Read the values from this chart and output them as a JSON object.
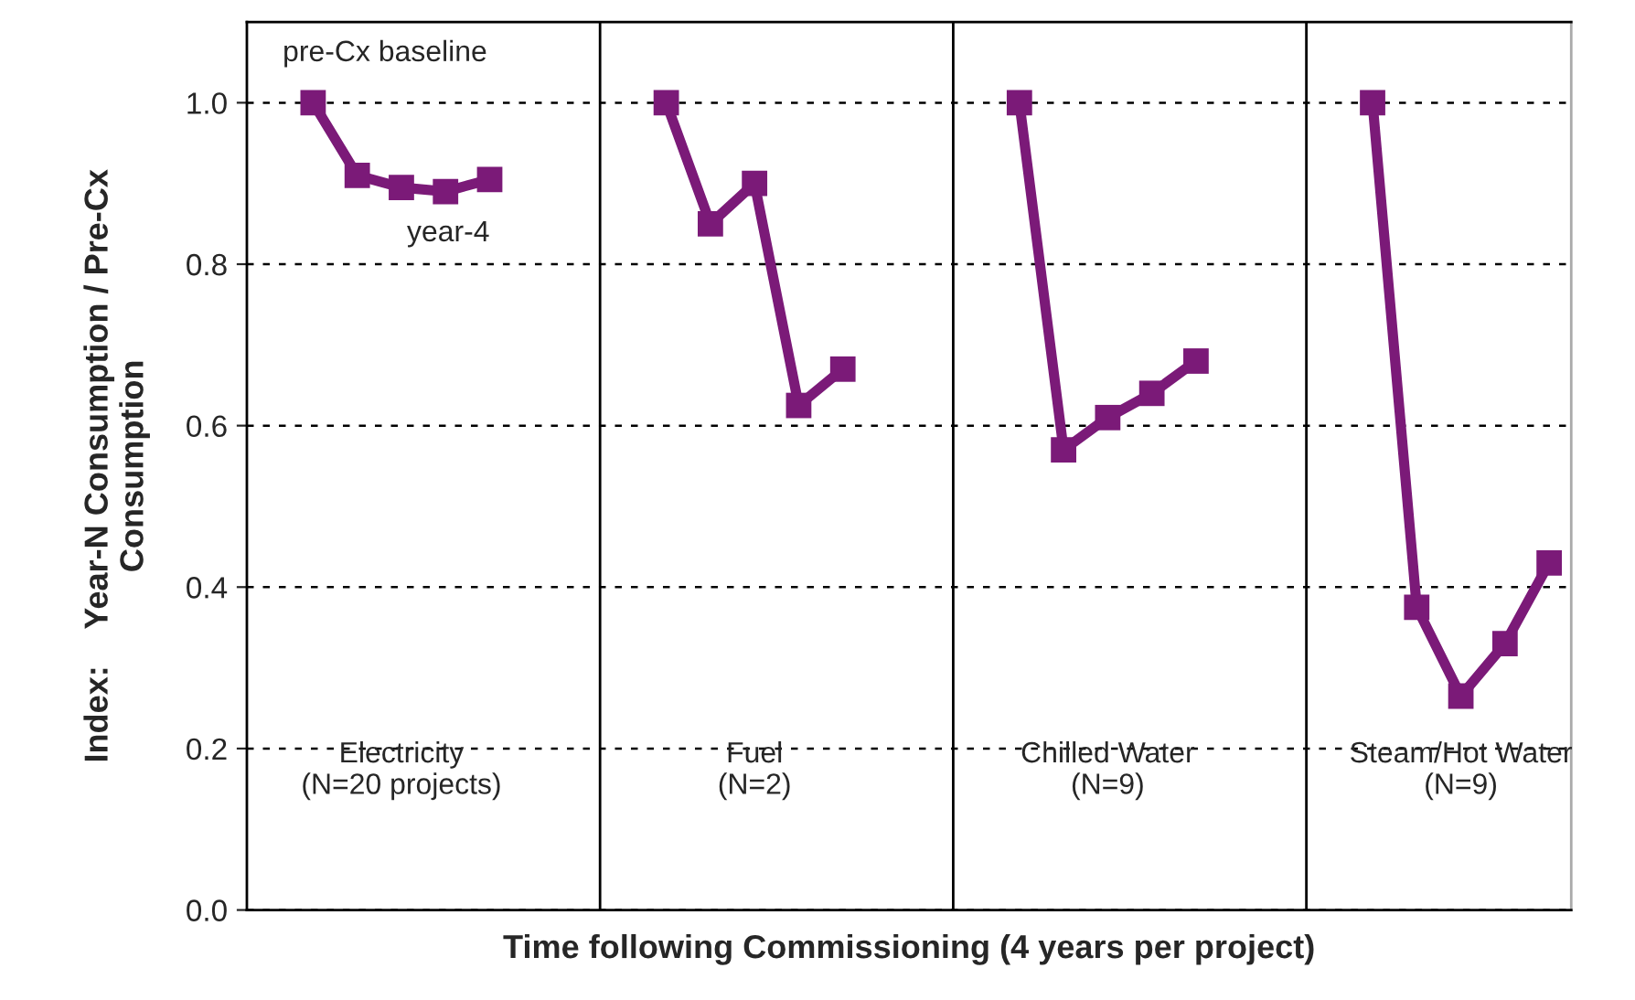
{
  "chart_data": {
    "type": "line",
    "categories": [
      null,
      null,
      null,
      null,
      null,
      null,
      null,
      null,
      null,
      null,
      null,
      null,
      null,
      null,
      null,
      null,
      null,
      null,
      null,
      null,
      null,
      null,
      null,
      null,
      null,
      null,
      null,
      null,
      null,
      null
    ],
    "series": [
      {
        "color": "#7b1a78",
        "values": [
          null,
          1.0,
          0.91,
          0.895,
          0.89,
          0.905,
          null,
          null,
          null,
          null,
          null,
          null,
          null,
          null,
          null,
          null,
          null,
          null,
          null,
          null,
          null,
          null,
          null,
          null,
          null,
          null,
          null,
          null,
          null,
          null
        ]
      },
      {
        "color": "#7b1a78",
        "values": [
          null,
          null,
          null,
          null,
          null,
          null,
          null,
          null,
          null,
          1.0,
          0.85,
          0.9,
          0.625,
          0.67,
          null,
          null,
          null,
          null,
          null,
          null,
          null,
          null,
          null,
          null,
          null,
          null,
          null,
          null,
          null,
          null
        ]
      },
      {
        "color": "#7b1a78",
        "values": [
          null,
          null,
          null,
          null,
          null,
          null,
          null,
          null,
          null,
          null,
          null,
          null,
          null,
          null,
          null,
          null,
          null,
          1.0,
          0.57,
          0.61,
          0.64,
          0.68,
          null,
          null,
          null,
          null,
          null,
          null,
          null,
          null
        ]
      },
      {
        "color": "#7b1a78",
        "values": [
          null,
          null,
          null,
          null,
          null,
          null,
          null,
          null,
          null,
          null,
          null,
          null,
          null,
          null,
          null,
          null,
          null,
          null,
          null,
          null,
          null,
          null,
          null,
          null,
          null,
          1.0,
          0.375,
          0.265,
          0.33,
          0.43
        ]
      }
    ],
    "ylim": [
      0,
      1.1
    ],
    "yticks": [
      {
        "value": 0,
        "label": "0.0"
      },
      0.2,
      0.4,
      0.6,
      0.8,
      {
        "value": 1,
        "label": "1.0"
      }
    ],
    "grid": "y",
    "marker": "square",
    "line_style": "solid",
    "ylabel": "Index:    Year-N Consumption / Pre-Cx\nConsumption",
    "xlabel": "Time following Commissioning (4 years per project)",
    "annotations": [
      "pre-Cx baseline",
      {
        "text": "year-4",
        "y": 0.905
      },
      "Electricity\n(N=20 projects)",
      "Fuel\n(N=2)",
      "Chilled Water\n(N=9)",
      "Steam/Hot Water\n(N=9)"
    ]
  }
}
